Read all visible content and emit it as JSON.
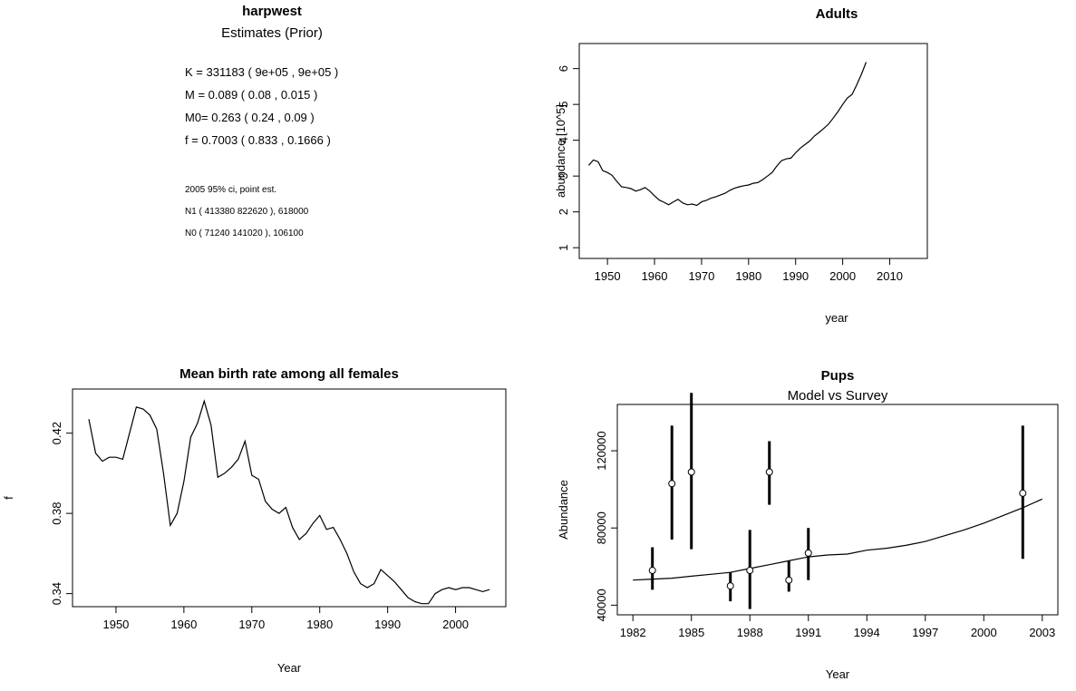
{
  "info_panel": {
    "title": "harpwest",
    "subtitle": "Estimates (Prior)",
    "params": [
      "K = 331183 ( 9e+05 , 9e+05 )",
      "M = 0.089 ( 0.08 , 0.015 )",
      "M0= 0.263 ( 0.24 , 0.09 )",
      "f = 0.7003 ( 0.833 , 0.1666 )"
    ],
    "ci_lines": [
      "2005 95% ci, point est.",
      "N1 ( 413380 822620 ), 618000",
      "N0 ( 71240 141020 ), 106100"
    ]
  },
  "chart_data": [
    {
      "id": "adults",
      "type": "line",
      "title": "Adults",
      "subtitle": "",
      "xlabel": "year",
      "ylabel": "abundance [10^5]",
      "xlim": [
        1944,
        2018
      ],
      "ylim": [
        0.7,
        6.7
      ],
      "xticks": [
        1950,
        1960,
        1970,
        1980,
        1990,
        2000,
        2010
      ],
      "yticks": [
        1,
        2,
        3,
        4,
        5,
        6
      ],
      "ytick_labels": [
        "1",
        "2",
        "3",
        "4",
        "5",
        "6"
      ],
      "series": [
        {
          "x": [
            1946,
            1947,
            1948,
            1949,
            1950,
            1951,
            1952,
            1953,
            1954,
            1955,
            1956,
            1957,
            1958,
            1959,
            1960,
            1961,
            1962,
            1963,
            1964,
            1965,
            1966,
            1967,
            1968,
            1969,
            1970,
            1971,
            1972,
            1973,
            1974,
            1975,
            1976,
            1977,
            1978,
            1979,
            1980,
            1981,
            1982,
            1983,
            1984,
            1985,
            1986,
            1987,
            1988,
            1989,
            1990,
            1991,
            1992,
            1993,
            1994,
            1995,
            1996,
            1997,
            1998,
            1999,
            2000,
            2001,
            2002,
            2003,
            2004,
            2005
          ],
          "y": [
            3.3,
            3.45,
            3.4,
            3.15,
            3.1,
            3.02,
            2.85,
            2.7,
            2.68,
            2.65,
            2.58,
            2.62,
            2.68,
            2.58,
            2.45,
            2.33,
            2.27,
            2.2,
            2.28,
            2.35,
            2.25,
            2.2,
            2.22,
            2.18,
            2.28,
            2.32,
            2.38,
            2.42,
            2.47,
            2.52,
            2.6,
            2.66,
            2.7,
            2.73,
            2.75,
            2.8,
            2.82,
            2.9,
            3.0,
            3.1,
            3.28,
            3.43,
            3.48,
            3.5,
            3.65,
            3.78,
            3.88,
            3.98,
            4.12,
            4.22,
            4.33,
            4.45,
            4.62,
            4.8,
            5.0,
            5.18,
            5.28,
            5.55,
            5.85,
            6.18
          ]
        }
      ]
    },
    {
      "id": "birthrate",
      "type": "line",
      "title": "Mean birth rate among all females",
      "subtitle": "",
      "xlabel": "Year",
      "ylabel": "f",
      "xlim": [
        1943.6,
        2007.4
      ],
      "ylim": [
        0.3335,
        0.442
      ],
      "xticks": [
        1950,
        1960,
        1970,
        1980,
        1990,
        2000
      ],
      "yticks": [
        0.34,
        0.38,
        0.42
      ],
      "ytick_labels": [
        "0.34",
        "0.38",
        "0.42"
      ],
      "series": [
        {
          "x": [
            1946,
            1947,
            1948,
            1949,
            1950,
            1951,
            1952,
            1953,
            1954,
            1955,
            1956,
            1957,
            1958,
            1959,
            1960,
            1961,
            1962,
            1963,
            1964,
            1965,
            1966,
            1967,
            1968,
            1969,
            1970,
            1971,
            1972,
            1973,
            1974,
            1975,
            1976,
            1977,
            1978,
            1979,
            1980,
            1981,
            1982,
            1983,
            1984,
            1985,
            1986,
            1987,
            1988,
            1989,
            1990,
            1991,
            1992,
            1993,
            1994,
            1995,
            1996,
            1997,
            1998,
            1999,
            2000,
            2001,
            2002,
            2003,
            2004,
            2005
          ],
          "y": [
            0.427,
            0.41,
            0.406,
            0.408,
            0.408,
            0.407,
            0.42,
            0.433,
            0.432,
            0.429,
            0.422,
            0.4,
            0.374,
            0.38,
            0.396,
            0.418,
            0.425,
            0.436,
            0.424,
            0.398,
            0.4,
            0.403,
            0.407,
            0.416,
            0.399,
            0.397,
            0.386,
            0.382,
            0.38,
            0.383,
            0.373,
            0.367,
            0.37,
            0.375,
            0.379,
            0.372,
            0.373,
            0.367,
            0.36,
            0.351,
            0.345,
            0.343,
            0.345,
            0.352,
            0.349,
            0.346,
            0.342,
            0.338,
            0.336,
            0.335,
            0.335,
            0.34,
            0.342,
            0.343,
            0.342,
            0.343,
            0.343,
            0.342,
            0.341,
            0.342
          ]
        }
      ]
    },
    {
      "id": "pups",
      "type": "line",
      "title": "Pups",
      "subtitle": "Model vs Survey",
      "xlabel": "Year",
      "ylabel": "Abundance",
      "xlim": [
        1981.2,
        2003.8
      ],
      "ylim": [
        35000,
        144000
      ],
      "xticks": [
        1982,
        1985,
        1988,
        1991,
        1994,
        1997,
        2000,
        2003
      ],
      "yticks": [
        40000,
        80000,
        120000
      ],
      "ytick_labels": [
        "40000",
        "80000",
        "120000"
      ],
      "series": [
        {
          "name": "",
          "x": [
            1982,
            1983,
            1984,
            1985,
            1986,
            1987,
            1988,
            1989,
            1990,
            1991,
            1992,
            1993,
            1994,
            1995,
            1996,
            1997,
            1998,
            1999,
            2000,
            2001,
            2002,
            2003
          ],
          "y": [
            53000,
            53500,
            54000,
            55000,
            56000,
            57000,
            59000,
            61000,
            63000,
            65000,
            66000,
            66500,
            68500,
            69500,
            71000,
            73000,
            76000,
            79000,
            82500,
            86500,
            90500,
            95000
          ]
        }
      ],
      "survey_points": {
        "x": [
          1983,
          1984,
          1985,
          1987,
          1988,
          1989,
          1990,
          1991,
          2002
        ],
        "y": [
          58000,
          103000,
          109000,
          50000,
          58000,
          109000,
          53000,
          67000,
          98000
        ],
        "lower": [
          48000,
          74000,
          69000,
          42000,
          38000,
          92000,
          47000,
          53000,
          64000
        ],
        "upper": [
          70000,
          133000,
          150000,
          57000,
          79000,
          125000,
          63000,
          80000,
          133000
        ]
      }
    }
  ]
}
